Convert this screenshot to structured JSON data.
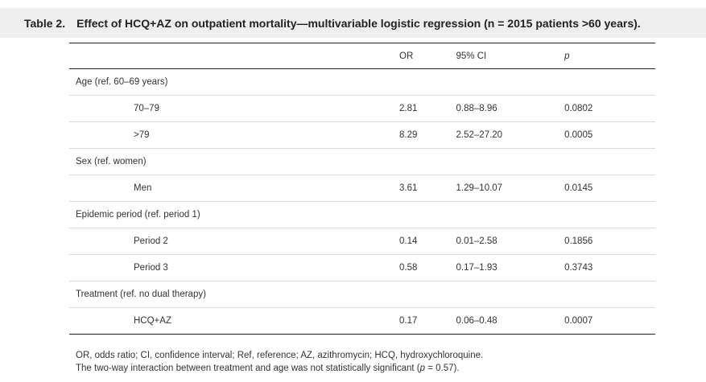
{
  "caption": {
    "label": "Table 2.",
    "title": "Effect of HCQ+AZ on outpatient mortality—multivariable logistic regression (n = 2015 patients >60 years)."
  },
  "table": {
    "headers": [
      "",
      "OR",
      "95% CI",
      "p"
    ],
    "rows": [
      {
        "type": "group",
        "cells": [
          "Age (ref. 60–69 years)",
          "",
          "",
          ""
        ]
      },
      {
        "type": "sub",
        "cells": [
          "70–79",
          "2.81",
          "0.88–8.96",
          "0.0802"
        ]
      },
      {
        "type": "sub",
        "cells": [
          ">79",
          "8.29",
          "2.52–27.20",
          "0.0005"
        ]
      },
      {
        "type": "group",
        "cells": [
          "Sex (ref. women)",
          "",
          "",
          ""
        ]
      },
      {
        "type": "sub",
        "cells": [
          "Men",
          "3.61",
          "1.29–10.07",
          "0.0145"
        ]
      },
      {
        "type": "group",
        "cells": [
          "Epidemic period (ref. period 1)",
          "",
          "",
          ""
        ]
      },
      {
        "type": "sub",
        "cells": [
          "Period 2",
          "0.14",
          "0.01–2.58",
          "0.1856"
        ]
      },
      {
        "type": "sub",
        "cells": [
          "Period 3",
          "0.58",
          "0.17–1.93",
          "0.3743"
        ]
      },
      {
        "type": "group",
        "cells": [
          "Treatment (ref. no dual therapy)",
          "",
          "",
          ""
        ]
      },
      {
        "type": "sub",
        "cells": [
          "HCQ+AZ",
          "0.17",
          "0.06–0.48",
          "0.0007"
        ]
      }
    ]
  },
  "notes": {
    "abbreviations": "OR, odds ratio; CI, confidence interval; Ref, reference; AZ, azithromycin; HCQ, hydroxychloroquine.",
    "interaction_before": "The two-way interaction between treatment and age was not statistically significant (",
    "interaction_p": "p",
    "interaction_after": " = 0.57)."
  }
}
